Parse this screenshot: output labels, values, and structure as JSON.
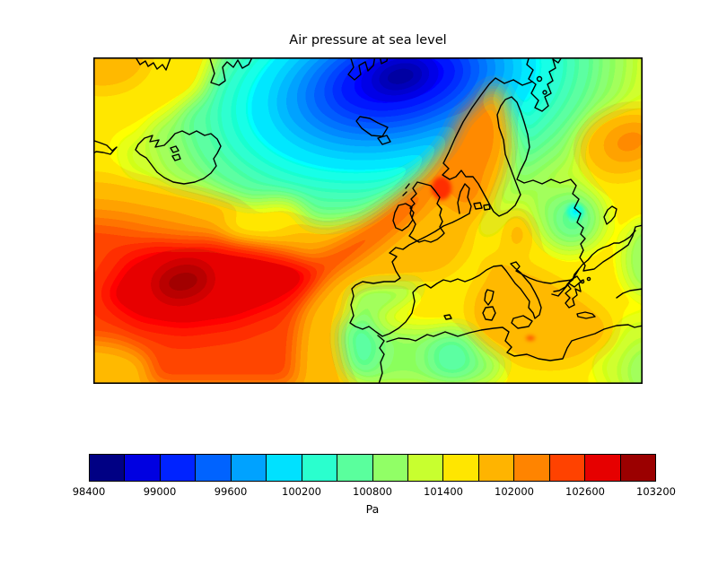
{
  "figure": {
    "title": "Air pressure at sea level",
    "background_color": "#ffffff",
    "frame_color": "#000000",
    "coastline_color": "#000000"
  },
  "colorbar": {
    "unit_label": "Pa",
    "orientation": "horizontal",
    "tick_labels": [
      "98400",
      "99000",
      "99600",
      "100200",
      "100800",
      "101400",
      "102000",
      "102600",
      "103200"
    ],
    "segment_colors": [
      "#000084",
      "#0000e1",
      "#0023ff",
      "#0063ff",
      "#00a2ff",
      "#00e1ff",
      "#2affce",
      "#5aff9d",
      "#91ff66",
      "#c8ff2f",
      "#ffe600",
      "#ffb400",
      "#ff8400",
      "#ff4200",
      "#e60000",
      "#9b0000"
    ]
  },
  "chart_data": {
    "type": "heatmap",
    "title": "Air pressure at sea level",
    "units": "Pa",
    "colormap": "jet (16 discrete bands)",
    "levels": [
      98400,
      98700,
      99000,
      99300,
      99600,
      99900,
      100200,
      100500,
      100800,
      101100,
      101400,
      101700,
      102000,
      102300,
      102600,
      102900,
      103200
    ],
    "value_range": [
      98400,
      103200
    ],
    "legend_position": "bottom horizontal colorbar",
    "region": "North Atlantic and Europe with black coastlines (Greenland edge, Iceland, Scandinavia, Baltic, British Isles, Iberia, Mediterranean, North Africa)",
    "features": [
      {
        "name": "deep low pressure center",
        "location": "Norwegian Sea / northern Scandinavia, top center",
        "approx_value_pa": 98400
      },
      {
        "name": "strong high pressure center",
        "location": "North Atlantic west of Iberia, lower left, dark red core",
        "approx_value_pa": 103100
      },
      {
        "name": "high pressure ridge",
        "location": "extends northeast over Ireland, Britain and southern Norway",
        "approx_value_pa": 102400
      },
      {
        "name": "moderate orange high",
        "location": "central Mediterranean around Italy and Ionian Sea, tiny red spot south of Sicily",
        "approx_value_pa": 101900
      },
      {
        "name": "weak low patch with cyan core",
        "location": "eastern Europe, right center",
        "approx_value_pa": 100300
      },
      {
        "name": "orange patch",
        "location": "top right corner area",
        "approx_value_pa": 101900
      },
      {
        "name": "green patches",
        "location": "Iberia, western Mediterranean, southeast Europe, bottom right corner",
        "approx_value_pa": 100700
      }
    ]
  }
}
